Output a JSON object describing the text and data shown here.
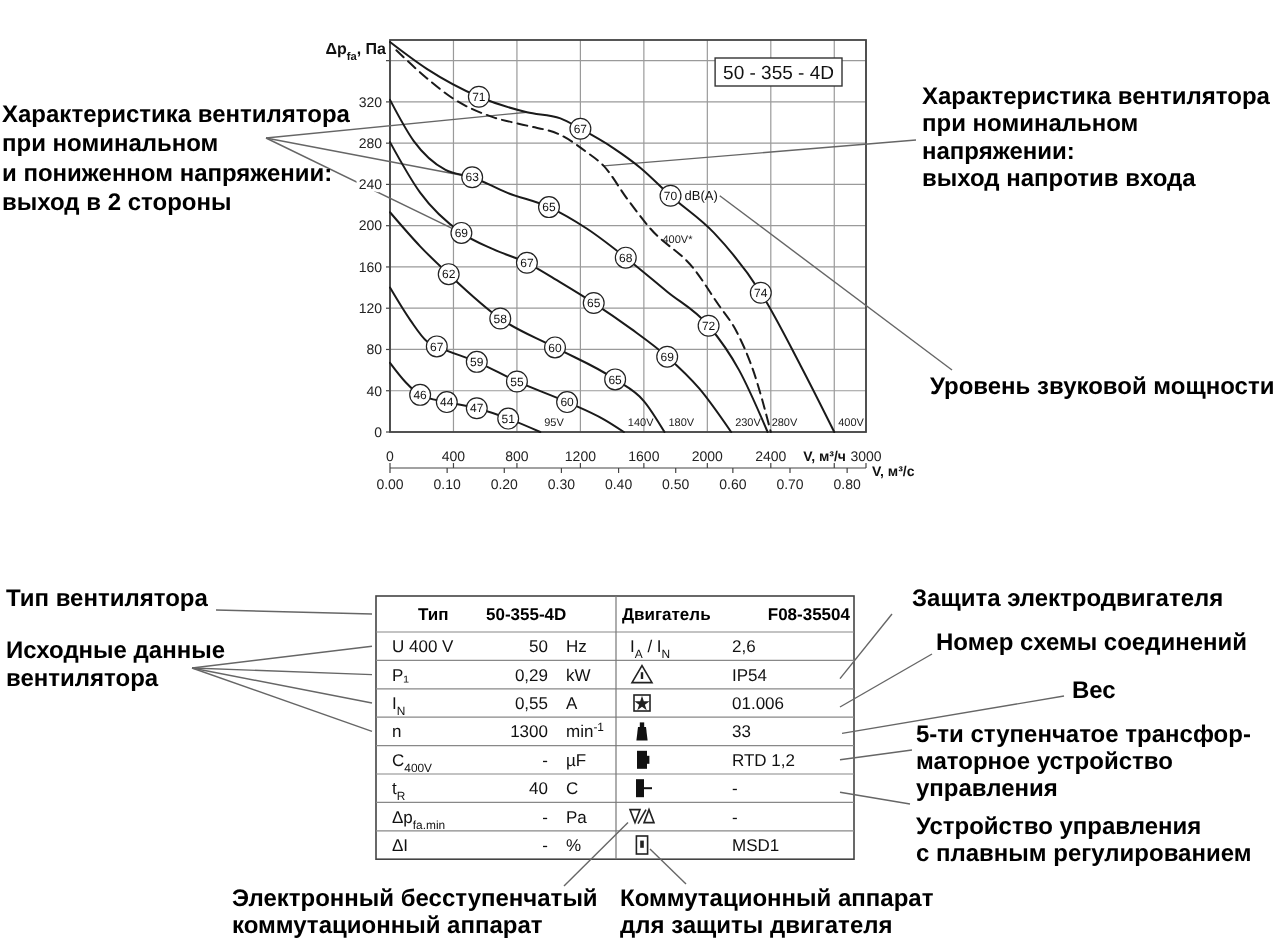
{
  "chart_data": [
    {
      "type": "line",
      "title": "50 - 355 - 4D",
      "ylabel": "Δp$_{fa}$, Па",
      "xlabel": "V, м³/ч",
      "x2label": "V, м³/с",
      "xlim": [
        0,
        3000
      ],
      "xticks": [
        0,
        400,
        800,
        1200,
        1600,
        2000,
        2400,
        {
          "value": 2800,
          "label": null
        },
        3000
      ],
      "ylim": [
        0,
        380
      ],
      "yticks": [
        0,
        40,
        80,
        120,
        160,
        200,
        240,
        280,
        320,
        {
          "value": 360,
          "label": null
        }
      ],
      "x2lim": [
        0,
        0.833
      ],
      "x2ticks": [
        {
          "value": 0,
          "label": "0.00"
        },
        {
          "value": 0.1,
          "label": "0.10"
        },
        {
          "value": 0.2,
          "label": "0.20"
        },
        {
          "value": 0.3,
          "label": "0.30"
        },
        {
          "value": 0.4,
          "label": "0.40"
        },
        {
          "value": 0.5,
          "label": "0.50"
        },
        {
          "value": 0.6,
          "label": "0.60"
        },
        {
          "value": 0.7,
          "label": "0.70"
        },
        {
          "value": 0.8,
          "label": "0.80"
        }
      ],
      "grid": true,
      "series": [
        {
          "name": "400V",
          "color": "#1a1a1a",
          "x": [
            0,
            232,
            560,
            863,
            1074,
            1200,
            1410,
            1579,
            1768,
            2042,
            2337,
            2589,
            2800
          ],
          "values": [
            378,
            352,
            325,
            310,
            304,
            294,
            275,
            256,
            229,
            193,
            135,
            64,
            0
          ]
        },
        {
          "name": "280V",
          "color": "#1a1a1a",
          "x": [
            0,
            150,
            350,
            518,
            737,
            1002,
            1242,
            1486,
            1747,
            2008,
            2200,
            2380
          ],
          "values": [
            322,
            282,
            254,
            247,
            232,
            218,
            197,
            169,
            136,
            103,
            60,
            0
          ]
        },
        {
          "name": "230V",
          "color": "#1a1a1a",
          "x": [
            0,
            190,
            450,
            653,
            863,
            1074,
            1284,
            1520,
            1747,
            1950,
            2150
          ],
          "values": [
            281,
            232,
            193,
            177,
            164,
            145,
            125,
            100,
            73,
            42,
            0
          ]
        },
        {
          "name": "180V",
          "color": "#1a1a1a",
          "x": [
            0,
            190,
            370,
            695,
            1040,
            1419,
            1600,
            1730
          ],
          "values": [
            213,
            180,
            153,
            110,
            82,
            51,
            30,
            0
          ]
        },
        {
          "name": "140V",
          "color": "#1a1a1a",
          "x": [
            0,
            130,
            232,
            295,
            547,
            800,
            1116,
            1350,
            1474
          ],
          "values": [
            140,
            108,
            88,
            83,
            68,
            49,
            29,
            12,
            0
          ]
        },
        {
          "name": "95V",
          "color": "#1a1a1a",
          "x": [
            0,
            100,
            190,
            358,
            547,
            745,
            947
          ],
          "values": [
            67,
            48,
            36,
            29,
            23,
            13,
            0
          ]
        },
        {
          "name": "400V*",
          "color": "#1a1a1a",
          "line_style": "dashed",
          "x": [
            40,
            232,
            400,
            653,
            863,
            1074,
            1242,
            1347,
            1495,
            1642,
            1916,
            2063,
            2189,
            2295,
            2400
          ],
          "values": [
            370,
            343,
            323,
            305,
            297,
            288,
            271,
            258,
            226,
            197,
            158,
            125,
            96,
            57,
            0
          ]
        }
      ],
      "annotations": [
        "Характеристика вентилятора\nпри номинальном\nи пониженном напряжении:\nвыход в 2 стороны",
        "Характеристика вентилятора\nпри номинальном\nнапряжении:\nвыход напротив входа",
        "Уровень звуковой мощности",
        {
          "text": "71",
          "x": 560,
          "y": 325
        },
        {
          "text": "67",
          "x": 1200,
          "y": 294
        },
        {
          "text": "70",
          "x": 1768,
          "y": 229
        },
        {
          "text": "dB(A)",
          "x": 1768,
          "y": 229
        },
        {
          "text": "74",
          "x": 2337,
          "y": 135
        },
        {
          "text": "63",
          "x": 518,
          "y": 247
        },
        {
          "text": "65",
          "x": 1002,
          "y": 218
        },
        {
          "text": "68",
          "x": 1486,
          "y": 169
        },
        {
          "text": "72",
          "x": 2008,
          "y": 103
        },
        {
          "text": "69",
          "x": 450,
          "y": 193
        },
        {
          "text": "67",
          "x": 863,
          "y": 164
        },
        {
          "text": "65",
          "x": 1284,
          "y": 125
        },
        {
          "text": "69",
          "x": 1747,
          "y": 73
        },
        {
          "text": "62",
          "x": 370,
          "y": 153
        },
        {
          "text": "58",
          "x": 695,
          "y": 110
        },
        {
          "text": "60",
          "x": 1040,
          "y": 82
        },
        {
          "text": "65",
          "x": 1419,
          "y": 51
        },
        {
          "text": "67",
          "x": 295,
          "y": 83
        },
        {
          "text": "59",
          "x": 547,
          "y": 68
        },
        {
          "text": "55",
          "x": 800,
          "y": 49
        },
        {
          "text": "60",
          "x": 1116,
          "y": 29
        },
        {
          "text": "46",
          "x": 190,
          "y": 36
        },
        {
          "text": "44",
          "x": 358,
          "y": 29
        },
        {
          "text": "47",
          "x": 547,
          "y": 23
        },
        {
          "text": "51",
          "x": 745,
          "y": 13
        }
      ]
    },
    {
      "type": "other",
      "cell_labels": [
        [
          "Тип",
          "50-355-4D",
          null,
          "Двигатель",
          "F08-35504"
        ],
        [
          "U 400 V",
          "50",
          "Hz",
          "I$_{A}$ / I$_{N}$",
          "2,6"
        ],
        [
          "P₁",
          "0,29",
          "kW",
          null,
          "IP54"
        ],
        [
          "I$_{N}$",
          "0,55",
          "A",
          null,
          "01.006"
        ],
        [
          "n",
          "1300",
          "min$^{-1}$",
          null,
          "33"
        ],
        [
          "C$_{400V}$",
          "-",
          "µF",
          null,
          "RTD 1,2"
        ],
        [
          "t$_{R}$",
          "40",
          "C",
          null,
          "-"
        ],
        [
          "Δp$_{fa.min}$",
          "-",
          "Pa",
          null,
          "-"
        ],
        [
          "ΔI",
          "-",
          "%",
          null,
          "MSD1"
        ]
      ],
      "annotations": [
        "Тип вентилятора",
        "Исходные данные\nвентилятора",
        "Защита электродвигателя",
        "Номер схемы соединений",
        "Вес",
        "5-ти ступенчатое трансфор-\nматорное устройство\nуправления",
        "Устройство управления\nс плавным регулированием",
        "Электронный бесступенчатый\nкоммутационный аппарат",
        "Коммутационный аппарат\nдля защиты двигателя"
      ]
    }
  ]
}
